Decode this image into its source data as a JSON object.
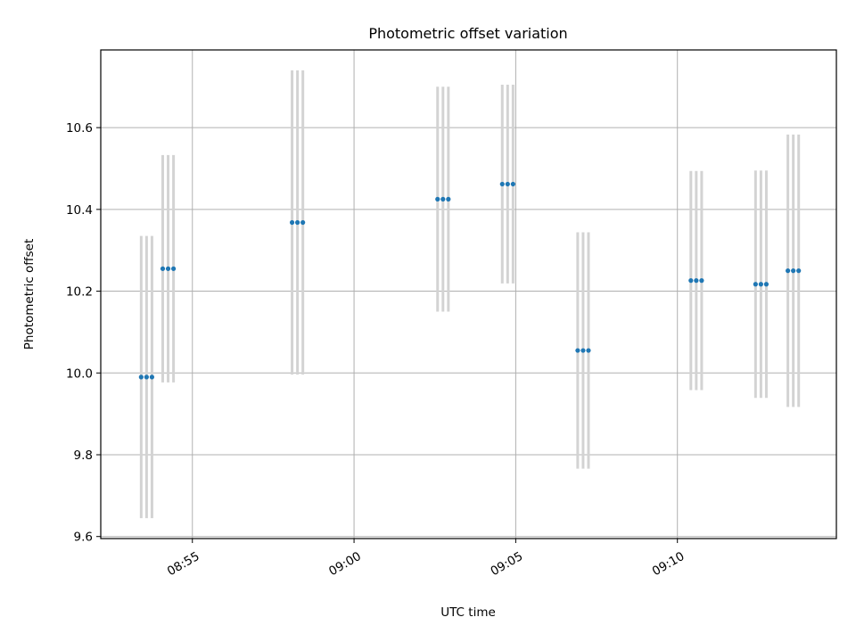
{
  "chart_data": {
    "type": "scatter",
    "title": "Photometric offset variation",
    "xlabel": "UTC time",
    "ylabel": "Photometric offset",
    "x_ticks": [
      "08:55",
      "09:00",
      "09:05",
      "09:10"
    ],
    "y_ticks": [
      "9.6",
      "9.8",
      "10.0",
      "10.2",
      "10.4",
      "10.6"
    ],
    "ylim": [
      9.595,
      10.79
    ],
    "xlim": [
      "08:52:10",
      "09:14:55"
    ],
    "grid": true,
    "point_color": "#1f77b4",
    "errorbar_color": "#d3d3d3",
    "series": [
      {
        "points": [
          {
            "x": "08:53:25",
            "y": 9.99,
            "err": 0.345
          },
          {
            "x": "08:53:35",
            "y": 9.99,
            "err": 0.345
          },
          {
            "x": "08:53:45",
            "y": 9.99,
            "err": 0.345
          },
          {
            "x": "08:54:05",
            "y": 10.255,
            "err": 0.278
          },
          {
            "x": "08:54:15",
            "y": 10.255,
            "err": 0.278
          },
          {
            "x": "08:54:25",
            "y": 10.255,
            "err": 0.278
          },
          {
            "x": "08:58:05",
            "y": 10.368,
            "err": 0.372
          },
          {
            "x": "08:58:15",
            "y": 10.368,
            "err": 0.372
          },
          {
            "x": "08:58:25",
            "y": 10.368,
            "err": 0.372
          },
          {
            "x": "09:02:35",
            "y": 10.425,
            "err": 0.275
          },
          {
            "x": "09:02:45",
            "y": 10.425,
            "err": 0.275
          },
          {
            "x": "09:02:55",
            "y": 10.425,
            "err": 0.275
          },
          {
            "x": "09:04:35",
            "y": 10.462,
            "err": 0.243
          },
          {
            "x": "09:04:45",
            "y": 10.462,
            "err": 0.243
          },
          {
            "x": "09:04:55",
            "y": 10.462,
            "err": 0.243
          },
          {
            "x": "09:06:55",
            "y": 10.055,
            "err": 0.289
          },
          {
            "x": "09:07:05",
            "y": 10.055,
            "err": 0.289
          },
          {
            "x": "09:07:15",
            "y": 10.055,
            "err": 0.289
          },
          {
            "x": "09:10:25",
            "y": 10.226,
            "err": 0.268
          },
          {
            "x": "09:10:35",
            "y": 10.226,
            "err": 0.268
          },
          {
            "x": "09:10:45",
            "y": 10.226,
            "err": 0.268
          },
          {
            "x": "09:12:25",
            "y": 10.217,
            "err": 0.278
          },
          {
            "x": "09:12:35",
            "y": 10.217,
            "err": 0.278
          },
          {
            "x": "09:12:45",
            "y": 10.217,
            "err": 0.278
          },
          {
            "x": "09:13:25",
            "y": 10.25,
            "err": 0.333
          },
          {
            "x": "09:13:35",
            "y": 10.25,
            "err": 0.333
          },
          {
            "x": "09:13:45",
            "y": 10.25,
            "err": 0.333
          }
        ]
      }
    ]
  }
}
